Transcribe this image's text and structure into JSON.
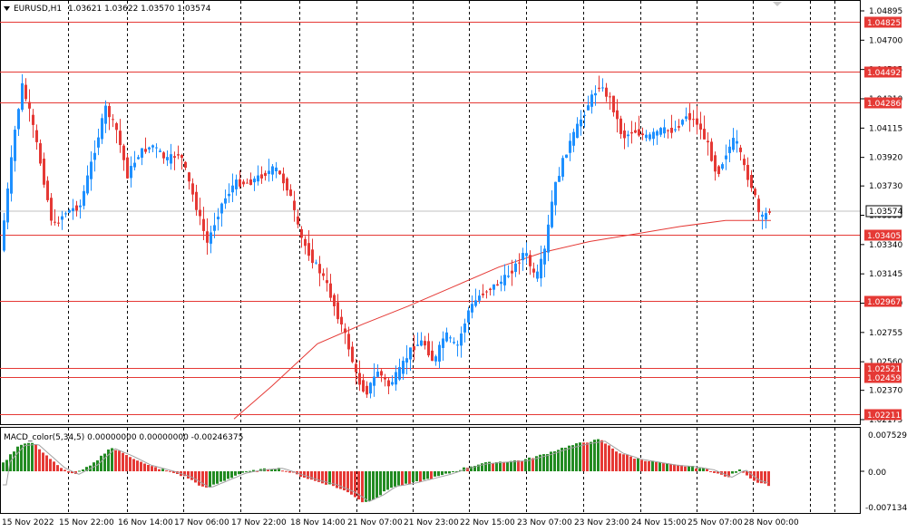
{
  "header": {
    "symbol": "EURUSD,H1",
    "ohlc": "1.03621 1.03622 1.03570 1.03574"
  },
  "macd": {
    "label": "MACD_color(5,34,5) 0.00000000 0.00000000 -0.00246375",
    "top": "0.0075292",
    "zero": "0.00",
    "bottom": "-0.0071344"
  },
  "price_axis": [
    "1.04895",
    "1.04700",
    "1.04505",
    "1.04310",
    "1.04115",
    "1.03920",
    "1.03730",
    "1.03535",
    "1.03340",
    "1.03145",
    "1.02950",
    "1.02755",
    "1.02560",
    "1.02370",
    "1.02175"
  ],
  "levels": [
    "1.04825",
    "1.04492",
    "1.04286",
    "1.03405",
    "1.02967",
    "1.02521",
    "1.02459",
    "1.02211"
  ],
  "current_price": "1.03574",
  "time_axis": [
    "15 Nov 2022",
    "15 Nov 22:00",
    "16 Nov 14:00",
    "17 Nov 06:00",
    "17 Nov 22:00",
    "18 Nov 14:00",
    "21 Nov 07:00",
    "21 Nov 23:00",
    "22 Nov 15:00",
    "23 Nov 07:00",
    "23 Nov 23:00",
    "24 Nov 15:00",
    "25 Nov 07:00",
    "28 Nov 00:00"
  ],
  "colors": {
    "bull": "#1E90FF",
    "bear": "#E53935",
    "level": "#E53935",
    "ma": "#E53935",
    "macd_up": "#228B22",
    "macd_down": "#E53935",
    "grid": "#000000"
  }
}
